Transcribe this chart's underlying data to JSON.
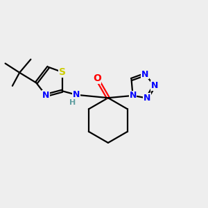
{
  "bg_color": "#eeeeee",
  "atom_colors": {
    "C": "#000000",
    "N": "#0000ff",
    "O": "#ff0000",
    "S": "#cccc00",
    "H": "#5f9ea0"
  },
  "bond_color": "#000000",
  "bond_width": 1.6
}
